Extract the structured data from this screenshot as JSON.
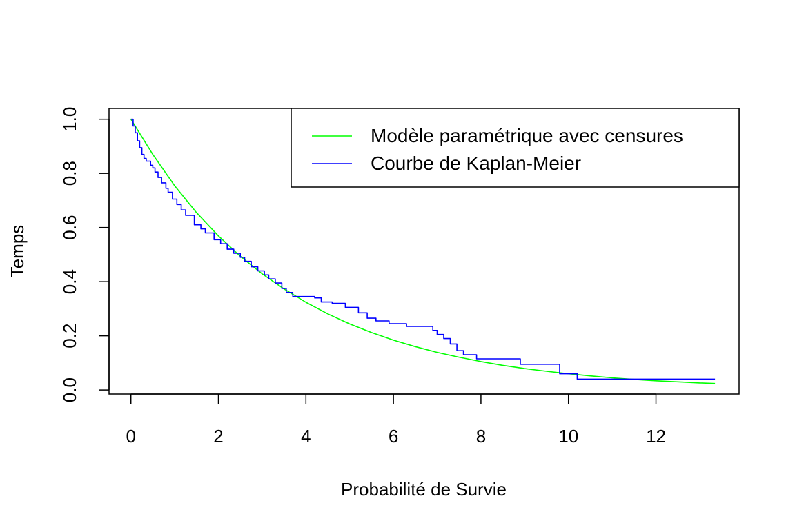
{
  "chart_data": {
    "type": "line",
    "title": "",
    "xlabel": "Probabilité de Survie",
    "ylabel": "Temps",
    "xlim": [
      -0.5,
      13.9
    ],
    "ylim": [
      -0.015,
      1.04
    ],
    "xticks": [
      "0",
      "2",
      "4",
      "6",
      "8",
      "10",
      "12"
    ],
    "yticks": [
      "0.0",
      "0.2",
      "0.4",
      "0.6",
      "0.8",
      "1.0"
    ],
    "legend_position": "top-right",
    "grid": false,
    "series": [
      {
        "name": "Modèle paramétrique avec censures",
        "color": "#00ff00",
        "style": "line",
        "x": [
          0,
          0.5,
          1,
          1.5,
          2,
          2.5,
          3,
          3.5,
          4,
          4.5,
          5,
          5.5,
          6,
          6.5,
          7,
          7.5,
          8,
          8.5,
          9,
          9.5,
          10,
          10.5,
          11,
          11.5,
          12,
          12.5,
          13,
          13.35
        ],
        "y": [
          1.0,
          0.87,
          0.754,
          0.655,
          0.569,
          0.494,
          0.429,
          0.373,
          0.324,
          0.281,
          0.244,
          0.212,
          0.184,
          0.16,
          0.139,
          0.121,
          0.105,
          0.091,
          0.079,
          0.069,
          0.06,
          0.052,
          0.045,
          0.039,
          0.034,
          0.03,
          0.026,
          0.024
        ]
      },
      {
        "name": "Courbe de Kaplan-Meier",
        "color": "#0000ff",
        "style": "step",
        "x": [
          0,
          0.05,
          0.1,
          0.15,
          0.2,
          0.25,
          0.3,
          0.35,
          0.45,
          0.5,
          0.55,
          0.62,
          0.7,
          0.8,
          0.85,
          0.95,
          1.05,
          1.15,
          1.25,
          1.45,
          1.6,
          1.7,
          1.9,
          2.05,
          2.2,
          2.35,
          2.5,
          2.6,
          2.75,
          2.9,
          3.05,
          3.15,
          3.3,
          3.45,
          3.55,
          3.7,
          4.0,
          4.2,
          4.35,
          4.6,
          4.9,
          5.2,
          5.4,
          5.6,
          5.9,
          6.3,
          6.9,
          7.0,
          7.15,
          7.3,
          7.45,
          7.6,
          7.9,
          8.9,
          9.8,
          10.2,
          13.35
        ],
        "y": [
          1.0,
          0.975,
          0.95,
          0.92,
          0.895,
          0.87,
          0.855,
          0.845,
          0.83,
          0.82,
          0.805,
          0.785,
          0.765,
          0.745,
          0.73,
          0.705,
          0.685,
          0.665,
          0.645,
          0.61,
          0.595,
          0.58,
          0.555,
          0.54,
          0.52,
          0.505,
          0.49,
          0.475,
          0.455,
          0.44,
          0.425,
          0.41,
          0.395,
          0.375,
          0.36,
          0.345,
          0.345,
          0.34,
          0.325,
          0.32,
          0.305,
          0.285,
          0.265,
          0.255,
          0.245,
          0.235,
          0.22,
          0.205,
          0.19,
          0.17,
          0.145,
          0.13,
          0.115,
          0.095,
          0.06,
          0.04,
          0.04
        ]
      }
    ]
  }
}
